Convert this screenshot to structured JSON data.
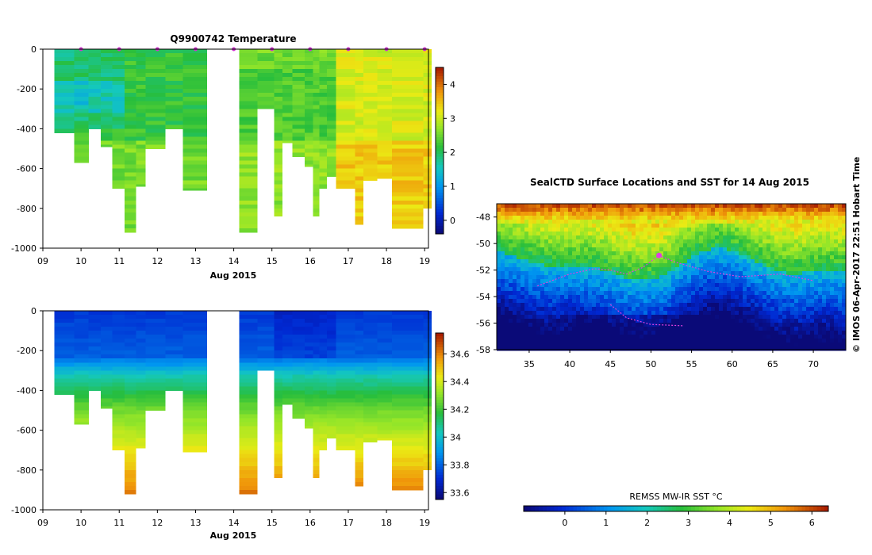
{
  "chart_data": [
    {
      "id": "temperature",
      "type": "heatmap",
      "title": "Q9900742  Temperature",
      "xlabel": "Aug 2015",
      "x_tick_labels": [
        "09",
        "10",
        "11",
        "12",
        "13",
        "14",
        "15",
        "16",
        "17",
        "18",
        "19"
      ],
      "x_ticks": [
        9,
        10,
        11,
        12,
        13,
        14,
        15,
        16,
        17,
        18,
        19
      ],
      "xlim": [
        9,
        19.1
      ],
      "y_tick_labels": [
        "0",
        "-200",
        "-400",
        "-600",
        "-800",
        "-1000"
      ],
      "y_ticks": [
        0,
        -200,
        -400,
        -600,
        -800,
        -1000
      ],
      "ylim": [
        -1000,
        0
      ],
      "colorbar": {
        "range": [
          -0.4,
          4.5
        ],
        "ticks": [
          0,
          1,
          2,
          3,
          4
        ],
        "tick_labels": [
          "0",
          "1",
          "2",
          "3",
          "4"
        ]
      },
      "profile_markers": [
        10,
        11,
        12,
        13,
        14,
        15,
        16,
        17,
        18,
        19
      ]
    },
    {
      "id": "salinity",
      "type": "heatmap",
      "title": "",
      "xlabel": "Aug 2015",
      "x_tick_labels": [
        "09",
        "10",
        "11",
        "12",
        "13",
        "14",
        "15",
        "16",
        "17",
        "18",
        "19"
      ],
      "x_ticks": [
        9,
        10,
        11,
        12,
        13,
        14,
        15,
        16,
        17,
        18,
        19
      ],
      "xlim": [
        9,
        19.1
      ],
      "y_tick_labels": [
        "0",
        "-200",
        "-400",
        "-600",
        "-800",
        "-1000"
      ],
      "y_ticks": [
        0,
        -200,
        -400,
        -600,
        -800,
        -1000
      ],
      "ylim": [
        -1000,
        0
      ],
      "colorbar": {
        "range": [
          33.55,
          34.75
        ],
        "ticks": [
          33.6,
          33.8,
          34,
          34.2,
          34.4,
          34.6
        ],
        "tick_labels": [
          "33.6",
          "33.8",
          "34",
          "34.2",
          "34.4",
          "34.6"
        ]
      }
    },
    {
      "id": "sst-map",
      "type": "heatmap",
      "title": "SealCTD Surface Locations and SST for 14 Aug 2015",
      "x_tick_labels": [
        "35",
        "40",
        "45",
        "50",
        "55",
        "60",
        "65",
        "70"
      ],
      "x_ticks": [
        35,
        40,
        45,
        50,
        55,
        60,
        65,
        70
      ],
      "xlim": [
        31,
        74
      ],
      "y_tick_labels": [
        "-48",
        "-50",
        "-52",
        "-54",
        "-56",
        "-58"
      ],
      "y_ticks": [
        -48,
        -50,
        -52,
        -54,
        -56,
        -58
      ],
      "ylim": [
        -58,
        -47
      ],
      "track_end": {
        "lon": 51,
        "lat": -50.9
      },
      "colorbar": {
        "label": "REMSS MW-IR SST °C",
        "range": [
          -1.0,
          6.4
        ],
        "ticks": [
          0,
          1,
          2,
          3,
          4,
          5,
          6
        ],
        "tick_labels": [
          "0",
          "1",
          "2",
          "3",
          "4",
          "5",
          "6"
        ]
      }
    }
  ],
  "profiles": [
    {
      "t": 9.3,
      "w": 0.52,
      "depth": 420
    },
    {
      "t": 9.82,
      "w": 0.38,
      "depth": 570
    },
    {
      "t": 10.2,
      "w": 0.32,
      "depth": 400
    },
    {
      "t": 10.52,
      "w": 0.3,
      "depth": 490
    },
    {
      "t": 10.82,
      "w": 0.32,
      "depth": 700
    },
    {
      "t": 11.14,
      "w": 0.3,
      "depth": 920
    },
    {
      "t": 11.44,
      "w": 0.25,
      "depth": 690
    },
    {
      "t": 11.69,
      "w": 0.52,
      "depth": 500
    },
    {
      "t": 12.21,
      "w": 0.46,
      "depth": 400
    },
    {
      "t": 12.67,
      "w": 0.63,
      "depth": 710
    },
    {
      "t": 14.14,
      "w": 0.48,
      "depth": 920
    },
    {
      "t": 14.62,
      "w": 0.44,
      "depth": 300
    },
    {
      "t": 15.06,
      "w": 0.22,
      "depth": 840
    },
    {
      "t": 15.28,
      "w": 0.26,
      "depth": 470
    },
    {
      "t": 15.54,
      "w": 0.32,
      "depth": 540
    },
    {
      "t": 15.86,
      "w": 0.22,
      "depth": 590
    },
    {
      "t": 16.08,
      "w": 0.16,
      "depth": 840
    },
    {
      "t": 16.24,
      "w": 0.2,
      "depth": 700
    },
    {
      "t": 16.44,
      "w": 0.24,
      "depth": 640
    },
    {
      "t": 16.68,
      "w": 0.5,
      "depth": 700
    },
    {
      "t": 17.18,
      "w": 0.22,
      "depth": 880
    },
    {
      "t": 17.4,
      "w": 0.36,
      "depth": 660
    },
    {
      "t": 17.76,
      "w": 0.38,
      "depth": 650
    },
    {
      "t": 18.14,
      "w": 0.82,
      "depth": 900
    },
    {
      "t": 18.96,
      "w": 0.22,
      "depth": 800
    }
  ],
  "watermark": "© IMOS 06-Apr-2017 22:51 Hobart Time",
  "colors": {
    "track": "#e040e0",
    "marker": "#cc33cc"
  }
}
